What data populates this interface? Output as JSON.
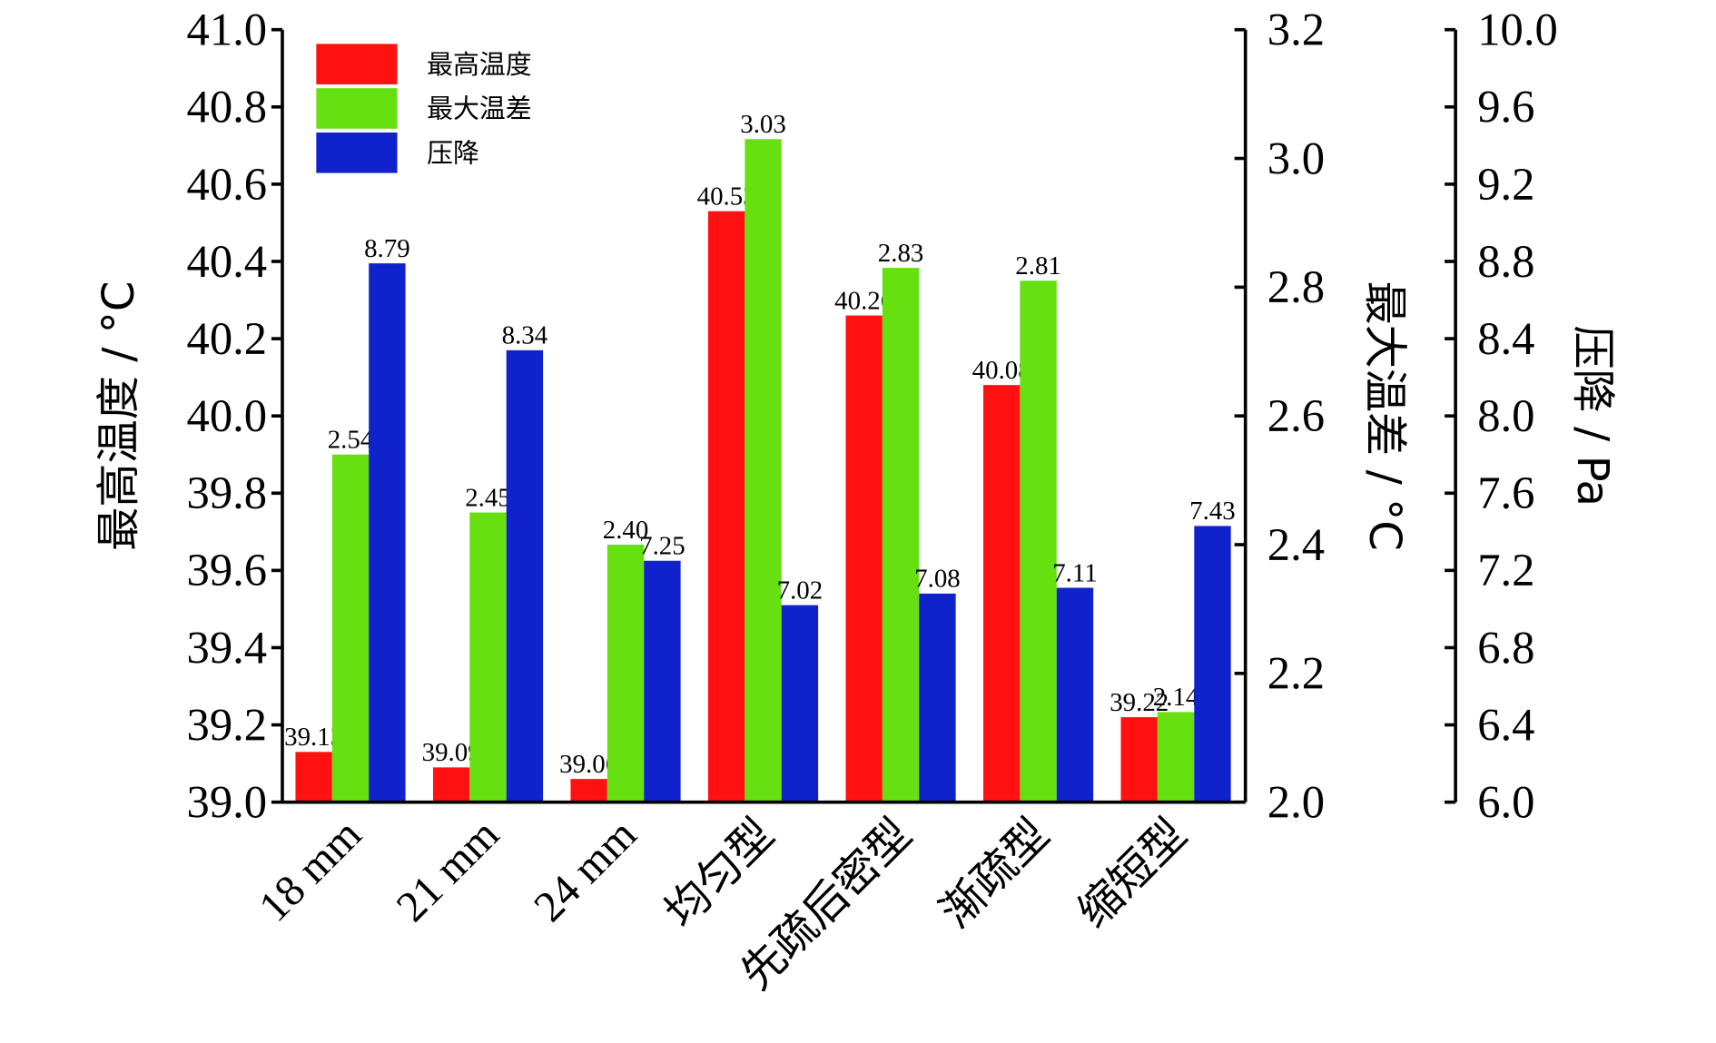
{
  "chart_data": {
    "type": "bar",
    "categories": [
      "18 mm",
      "21 mm",
      "24 mm",
      "均匀型",
      "先疏后密型",
      "渐疏型",
      "缩短型"
    ],
    "series": [
      {
        "name": "最高温度",
        "axis": "left",
        "color": "#ff1111",
        "values": [
          39.13,
          39.09,
          39.06,
          40.53,
          40.26,
          40.08,
          39.22
        ],
        "labels": [
          "39.13",
          "39.09",
          "39.06",
          "40.53",
          "40.26",
          "40.08",
          "39.22"
        ]
      },
      {
        "name": "最大温差",
        "axis": "right1",
        "color": "#66e011",
        "values": [
          2.54,
          2.45,
          2.4,
          3.03,
          2.83,
          2.81,
          2.14
        ],
        "labels": [
          "2.54",
          "2.45",
          "2.40",
          "3.03",
          "2.83",
          "2.81",
          "2.14"
        ]
      },
      {
        "name": "压降",
        "axis": "right2",
        "color": "#1022cc",
        "values": [
          8.79,
          8.34,
          7.25,
          7.02,
          7.08,
          7.11,
          7.43
        ],
        "labels": [
          "8.79",
          "8.34",
          "7.25",
          "7.02",
          "7.08",
          "7.11",
          "7.43"
        ]
      }
    ],
    "axes": {
      "left": {
        "label": "最高温度 / °C",
        "range": [
          39.0,
          41.0
        ],
        "ticks": [
          "39.0",
          "39.2",
          "39.4",
          "39.6",
          "39.8",
          "40.0",
          "40.2",
          "40.4",
          "40.6",
          "40.8",
          "41.0"
        ]
      },
      "right1": {
        "label": "最大温差 / °C",
        "range": [
          2.0,
          3.2
        ],
        "ticks": [
          "2.0",
          "2.2",
          "2.4",
          "2.6",
          "2.8",
          "3.0",
          "3.2"
        ]
      },
      "right2": {
        "label": "压降 / Pa",
        "range": [
          6.0,
          10.0
        ],
        "ticks": [
          "6.0",
          "6.4",
          "6.8",
          "7.2",
          "7.6",
          "8.0",
          "8.4",
          "8.8",
          "9.2",
          "9.6",
          "10.0"
        ]
      }
    },
    "legend": "top-left",
    "grid": false
  }
}
